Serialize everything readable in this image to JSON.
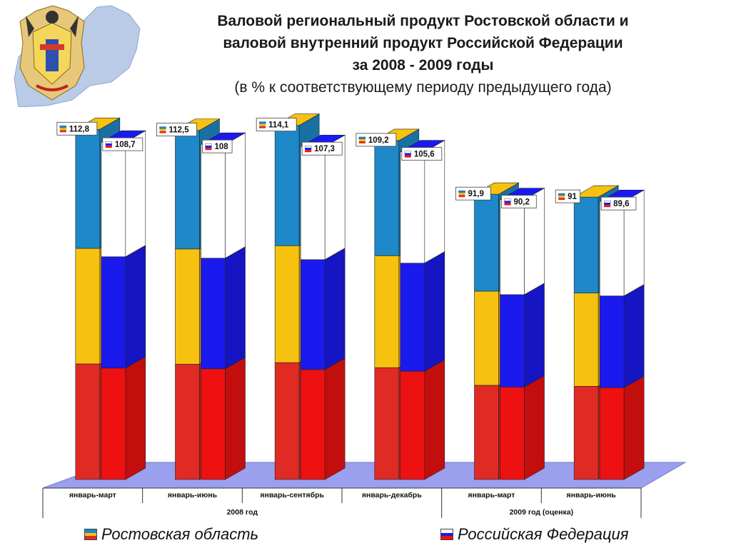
{
  "title": {
    "line1": "Валовой региональный продукт Ростовской области и",
    "line2": "валовой внутренний продукт Российской Федерации",
    "line3": "за  2008 - 2009 годы",
    "subtitle": "(в % к соответствующему периоду предыдущего года)"
  },
  "colors": {
    "region": [
      "#1e88c8",
      "#f6c20f",
      "#e02a24"
    ],
    "russia": [
      "#ffffff",
      "#1a1aee",
      "#ee1111"
    ],
    "floor": "#9aa0ee"
  },
  "chart_data": {
    "type": "bar",
    "categories": [
      "январь-март",
      "январь-июнь",
      "январь-сентябрь",
      "январь-декабрь",
      "январь-март",
      "январь-июнь"
    ],
    "groups": [
      {
        "label": "2008 год",
        "span": [
          0,
          3
        ]
      },
      {
        "label": "2009 год (оценка)",
        "span": [
          4,
          5
        ]
      }
    ],
    "series": [
      {
        "name": "Ростовская область",
        "values": [
          112.8,
          112.5,
          114.1,
          109.2,
          91.9,
          91
        ]
      },
      {
        "name": "Российская Федерация",
        "values": [
          108.7,
          108,
          107.3,
          105.6,
          90.2,
          89.6
        ]
      }
    ],
    "value_labels": {
      "region": [
        "112,8",
        "112,5",
        "114,1",
        "109,2",
        "91,9",
        "91"
      ],
      "russia": [
        "108,7",
        "108",
        "107,3",
        "105,6",
        "90,2",
        "89,6"
      ]
    },
    "ylim": [
      0,
      120
    ],
    "grid": false,
    "legend_position": "bottom"
  },
  "legend": {
    "region": "Ростовская область",
    "russia": "Российская Федерация"
  }
}
